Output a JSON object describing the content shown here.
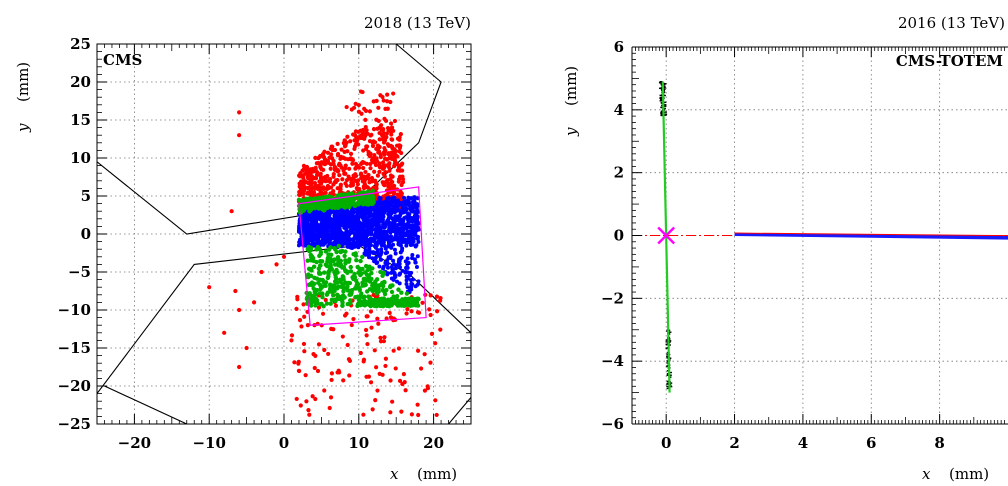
{
  "chart_data": [
    {
      "type": "scatter",
      "title": "2018 (13 TeV)",
      "label": "CMS",
      "xlabel_var": "x",
      "xlabel_unit": "(mm)",
      "ylabel_var": "y",
      "ylabel_unit": "(mm)",
      "xlim": [
        -25,
        25
      ],
      "ylim": [
        -25,
        25
      ],
      "xticks": [
        "−20",
        "−10",
        "0",
        "10",
        "20"
      ],
      "yticks": [
        "25",
        "20",
        "15",
        "10",
        "5",
        "0",
        "−5",
        "−10",
        "−15",
        "−20",
        "−25"
      ],
      "grid": true,
      "colors": {
        "red": "#ff0000",
        "blue": "#0000ff",
        "green": "#00b000",
        "magenta": "#ff00ff",
        "black": "#000000"
      },
      "outline": [
        [
          -25,
          9.5
        ],
        [
          -13,
          0
        ],
        [
          9,
          3.5
        ],
        [
          18,
          12
        ],
        [
          21,
          20
        ],
        [
          15,
          25
        ]
      ],
      "outline_lower": [
        [
          -25,
          -21
        ],
        [
          -12,
          -4
        ],
        [
          10,
          -1.5
        ],
        [
          17,
          -5.5
        ],
        [
          25,
          -13
        ]
      ],
      "outline_corner": [
        [
          -24,
          -20
        ],
        [
          -13,
          -25
        ]
      ],
      "outline_corner_right": [
        [
          22,
          -25
        ],
        [
          25,
          -21.5
        ]
      ],
      "acceptance_box": [
        [
          2,
          4
        ],
        [
          18,
          6.2
        ],
        [
          19,
          -11
        ],
        [
          3.5,
          -12
        ]
      ],
      "series": [
        {
          "color": "red",
          "region": {
            "xmin": 2,
            "xmax": 16,
            "ymin": 4,
            "ymax": 14
          },
          "n": 700
        },
        {
          "color": "red",
          "region": {
            "xmin": 1,
            "xmax": 21,
            "ymin": -24,
            "ymax": -8
          },
          "n": 160
        },
        {
          "color": "red",
          "region": {
            "xmin": 8,
            "xmax": 15,
            "ymin": 14,
            "ymax": 19
          },
          "n": 35
        },
        {
          "color": "blue",
          "region": {
            "xmin": 2,
            "xmax": 18,
            "ymin": -4,
            "ymax": 5
          },
          "n": 1600
        },
        {
          "color": "green",
          "region": {
            "xmin": 2,
            "xmax": 12,
            "ymin": 2.6,
            "ymax": 4.5
          },
          "n": 300
        },
        {
          "color": "green",
          "region": {
            "xmin": 3,
            "xmax": 18,
            "ymin": -9.5,
            "ymax": -1.5
          },
          "n": 500
        }
      ]
    },
    {
      "type": "line",
      "title": "2016 (13 TeV)",
      "label": "CMS-TOTEM",
      "xlabel_var": "x",
      "xlabel_unit": "(mm)",
      "ylabel_var": "y",
      "ylabel_unit": "(mm)",
      "xlim": [
        -1,
        10
      ],
      "ylim": [
        -6,
        6
      ],
      "xticks": [
        "0",
        "2",
        "4",
        "6",
        "8"
      ],
      "yticks": [
        "6",
        "4",
        "2",
        "0",
        "−2",
        "−4",
        "−6"
      ],
      "grid": true,
      "colors": {
        "red": "#ff0000",
        "blue": "#1a1aff",
        "green": "#22cc22",
        "magenta": "#ff00ff",
        "black": "#000000"
      },
      "vertical_band": {
        "x_top": -0.1,
        "x_bottom": 0.1,
        "y_top": 4.9,
        "y_bottom": -5
      },
      "horizontal_band": {
        "x_start": 2,
        "x_end": 10,
        "y_start": 0.03,
        "y_end": -0.05
      },
      "marker": {
        "x": 0,
        "y": 0
      }
    }
  ]
}
